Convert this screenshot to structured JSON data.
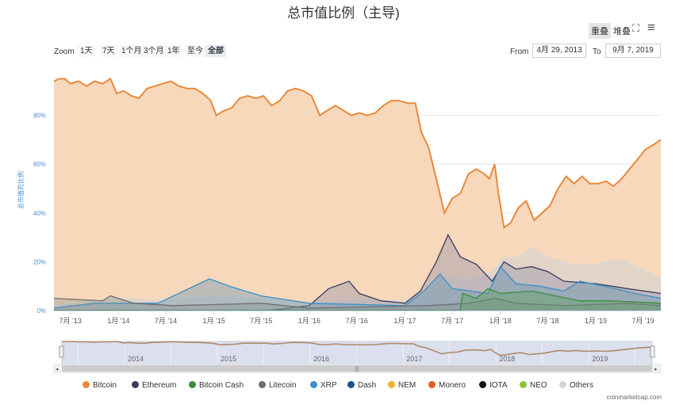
{
  "title": "总市值比例（主导)",
  "toolbar": {
    "overlay_label": "重叠",
    "stacked_label": "堆叠"
  },
  "zoom": {
    "label": "Zoom",
    "buttons": [
      "1天",
      "7天",
      "1个月",
      "3个月",
      "1年",
      "至今",
      "全部"
    ],
    "active": "全部"
  },
  "range": {
    "from_label": "From",
    "from_value": "4月 29, 2013",
    "to_label": "To",
    "to_value": "9月 7, 2019"
  },
  "credit": "coinmarketcap.com",
  "chart_data": {
    "type": "area",
    "title": "总市值比例（主导)",
    "ylabel": "总市值的比例",
    "ylim": [
      0,
      100
    ],
    "yticks": [
      "0%",
      "20%",
      "40%",
      "60%",
      "80%"
    ],
    "x_range": [
      "2013-04-29",
      "2019-09-07"
    ],
    "x_ticks": [
      {
        "date": "2013-07-01",
        "label": "7月 '13"
      },
      {
        "date": "2014-01-01",
        "label": "1月 '14"
      },
      {
        "date": "2014-07-01",
        "label": "7月 '14"
      },
      {
        "date": "2015-01-01",
        "label": "1月 '15"
      },
      {
        "date": "2015-07-01",
        "label": "7月 '15"
      },
      {
        "date": "2016-01-01",
        "label": "1月 '16"
      },
      {
        "date": "2016-07-01",
        "label": "7月 '16"
      },
      {
        "date": "2017-01-01",
        "label": "1月 '17"
      },
      {
        "date": "2017-07-01",
        "label": "7月 '17"
      },
      {
        "date": "2018-01-01",
        "label": "1月 '18"
      },
      {
        "date": "2018-07-01",
        "label": "7月 '18"
      },
      {
        "date": "2019-01-01",
        "label": "1月 '19"
      },
      {
        "date": "2019-07-01",
        "label": "7月 '19"
      }
    ],
    "navigator_labels": [
      {
        "date": "2014-01-01",
        "label": "2014"
      },
      {
        "date": "2015-01-01",
        "label": "2015"
      },
      {
        "date": "2016-01-01",
        "label": "2016"
      },
      {
        "date": "2017-01-01",
        "label": "2017"
      },
      {
        "date": "2018-01-01",
        "label": "2018"
      },
      {
        "date": "2019-01-01",
        "label": "2019"
      }
    ],
    "series": [
      {
        "name": "Bitcoin",
        "color": "#e8893b",
        "fill": "#f7d8bb",
        "points": [
          [
            "2013-04-29",
            94
          ],
          [
            "2013-05-20",
            95
          ],
          [
            "2013-06-10",
            95
          ],
          [
            "2013-07-01",
            93
          ],
          [
            "2013-08-01",
            94
          ],
          [
            "2013-09-01",
            92
          ],
          [
            "2013-10-01",
            94
          ],
          [
            "2013-11-01",
            93
          ],
          [
            "2013-12-01",
            95
          ],
          [
            "2013-12-25",
            89
          ],
          [
            "2014-01-20",
            90
          ],
          [
            "2014-02-20",
            88
          ],
          [
            "2014-03-20",
            87
          ],
          [
            "2014-04-20",
            91
          ],
          [
            "2014-05-20",
            92
          ],
          [
            "2014-06-20",
            93
          ],
          [
            "2014-07-20",
            94
          ],
          [
            "2014-08-20",
            92
          ],
          [
            "2014-09-20",
            91
          ],
          [
            "2014-10-20",
            91
          ],
          [
            "2014-11-20",
            89
          ],
          [
            "2014-12-20",
            86
          ],
          [
            "2015-01-10",
            80
          ],
          [
            "2015-02-10",
            82
          ],
          [
            "2015-03-10",
            83
          ],
          [
            "2015-04-10",
            87
          ],
          [
            "2015-05-10",
            88
          ],
          [
            "2015-06-10",
            87
          ],
          [
            "2015-07-10",
            88
          ],
          [
            "2015-08-10",
            84
          ],
          [
            "2015-09-10",
            86
          ],
          [
            "2015-10-10",
            90
          ],
          [
            "2015-11-10",
            91
          ],
          [
            "2015-12-10",
            90
          ],
          [
            "2016-01-10",
            88
          ],
          [
            "2016-02-10",
            80
          ],
          [
            "2016-03-10",
            82
          ],
          [
            "2016-04-10",
            84
          ],
          [
            "2016-05-10",
            82
          ],
          [
            "2016-06-10",
            80
          ],
          [
            "2016-07-10",
            81
          ],
          [
            "2016-08-10",
            80
          ],
          [
            "2016-09-10",
            81
          ],
          [
            "2016-10-10",
            84
          ],
          [
            "2016-11-10",
            86
          ],
          [
            "2016-12-10",
            86
          ],
          [
            "2017-01-10",
            85
          ],
          [
            "2017-02-10",
            85
          ],
          [
            "2017-03-05",
            73
          ],
          [
            "2017-04-01",
            67
          ],
          [
            "2017-05-01",
            54
          ],
          [
            "2017-06-01",
            40
          ],
          [
            "2017-07-01",
            46
          ],
          [
            "2017-08-01",
            48
          ],
          [
            "2017-09-01",
            56
          ],
          [
            "2017-10-01",
            58
          ],
          [
            "2017-11-01",
            56
          ],
          [
            "2017-11-20",
            54
          ],
          [
            "2017-12-10",
            60
          ],
          [
            "2017-12-25",
            48
          ],
          [
            "2018-01-15",
            34
          ],
          [
            "2018-02-10",
            36
          ],
          [
            "2018-03-10",
            42
          ],
          [
            "2018-04-10",
            45
          ],
          [
            "2018-05-10",
            37
          ],
          [
            "2018-06-10",
            40
          ],
          [
            "2018-07-10",
            43
          ],
          [
            "2018-08-10",
            50
          ],
          [
            "2018-09-10",
            55
          ],
          [
            "2018-10-10",
            52
          ],
          [
            "2018-11-10",
            55
          ],
          [
            "2018-12-10",
            52
          ],
          [
            "2019-01-10",
            52
          ],
          [
            "2019-02-10",
            53
          ],
          [
            "2019-03-10",
            51
          ],
          [
            "2019-04-10",
            54
          ],
          [
            "2019-05-10",
            58
          ],
          [
            "2019-06-10",
            62
          ],
          [
            "2019-07-10",
            66
          ],
          [
            "2019-08-10",
            68
          ],
          [
            "2019-09-07",
            70
          ]
        ]
      },
      {
        "name": "Others",
        "color": "#d9d9d9",
        "fill": "rgba(210,210,210,0.55)",
        "points": [
          [
            "2013-04-29",
            2
          ],
          [
            "2014-01-01",
            5
          ],
          [
            "2014-06-01",
            4
          ],
          [
            "2015-01-01",
            6
          ],
          [
            "2015-06-01",
            5
          ],
          [
            "2016-01-01",
            3
          ],
          [
            "2016-06-01",
            4
          ],
          [
            "2017-01-01",
            4
          ],
          [
            "2017-03-01",
            7
          ],
          [
            "2017-06-01",
            14
          ],
          [
            "2017-09-01",
            12
          ],
          [
            "2017-12-01",
            16
          ],
          [
            "2018-01-15",
            22
          ],
          [
            "2018-03-01",
            21
          ],
          [
            "2018-05-01",
            26
          ],
          [
            "2018-07-01",
            22
          ],
          [
            "2018-10-01",
            19
          ],
          [
            "2019-01-01",
            19
          ],
          [
            "2019-04-01",
            21
          ],
          [
            "2019-06-01",
            18
          ],
          [
            "2019-09-07",
            13
          ]
        ]
      },
      {
        "name": "Ethereum",
        "color": "#3b3a5c",
        "fill": "rgba(150,150,170,0.45)",
        "points": [
          [
            "2013-04-29",
            0
          ],
          [
            "2015-08-01",
            0
          ],
          [
            "2016-01-01",
            2
          ],
          [
            "2016-03-15",
            9
          ],
          [
            "2016-06-01",
            12
          ],
          [
            "2016-07-10",
            7
          ],
          [
            "2016-10-01",
            4
          ],
          [
            "2017-01-01",
            3
          ],
          [
            "2017-03-01",
            8
          ],
          [
            "2017-05-01",
            20
          ],
          [
            "2017-06-15",
            31
          ],
          [
            "2017-08-01",
            22
          ],
          [
            "2017-10-01",
            19
          ],
          [
            "2017-12-01",
            12
          ],
          [
            "2018-01-15",
            20
          ],
          [
            "2018-03-01",
            17
          ],
          [
            "2018-05-01",
            18
          ],
          [
            "2018-07-01",
            16
          ],
          [
            "2018-09-01",
            12
          ],
          [
            "2019-01-01",
            11
          ],
          [
            "2019-05-01",
            9
          ],
          [
            "2019-09-07",
            7
          ]
        ]
      },
      {
        "name": "XRP",
        "color": "#3a8fca",
        "fill": "rgba(100,150,180,0.40)",
        "points": [
          [
            "2013-04-29",
            1
          ],
          [
            "2013-10-01",
            3
          ],
          [
            "2014-06-01",
            3
          ],
          [
            "2014-12-15",
            13
          ],
          [
            "2015-03-01",
            10
          ],
          [
            "2015-07-01",
            6
          ],
          [
            "2016-01-01",
            3
          ],
          [
            "2017-01-01",
            2
          ],
          [
            "2017-03-15",
            8
          ],
          [
            "2017-05-15",
            15
          ],
          [
            "2017-07-01",
            9
          ],
          [
            "2017-11-15",
            7
          ],
          [
            "2018-01-01",
            18
          ],
          [
            "2018-03-01",
            11
          ],
          [
            "2018-06-01",
            10
          ],
          [
            "2018-09-01",
            8
          ],
          [
            "2018-11-01",
            12
          ],
          [
            "2019-02-01",
            10
          ],
          [
            "2019-06-01",
            7
          ],
          [
            "2019-09-07",
            5
          ]
        ]
      },
      {
        "name": "Litecoin",
        "color": "#6e6e6e",
        "fill": "rgba(130,140,140,0.35)",
        "points": [
          [
            "2013-04-29",
            5
          ],
          [
            "2013-11-01",
            4
          ],
          [
            "2013-12-01",
            6
          ],
          [
            "2014-03-01",
            3
          ],
          [
            "2014-08-01",
            2
          ],
          [
            "2015-07-01",
            3
          ],
          [
            "2016-01-01",
            1
          ],
          [
            "2017-04-01",
            2
          ],
          [
            "2017-09-01",
            3
          ],
          [
            "2017-12-15",
            5
          ],
          [
            "2018-03-01",
            3
          ],
          [
            "2018-09-01",
            2
          ],
          [
            "2019-05-01",
            3
          ],
          [
            "2019-09-07",
            2
          ]
        ]
      },
      {
        "name": "Bitcoin Cash",
        "color": "#3f8a3c",
        "fill": "rgba(90,160,90,0.40)",
        "points": [
          [
            "2013-04-29",
            0
          ],
          [
            "2017-07-31",
            0
          ],
          [
            "2017-08-10",
            7
          ],
          [
            "2017-10-01",
            5
          ],
          [
            "2017-11-15",
            9
          ],
          [
            "2018-01-01",
            7
          ],
          [
            "2018-05-01",
            8
          ],
          [
            "2018-11-01",
            4
          ],
          [
            "2019-03-01",
            4
          ],
          [
            "2019-09-07",
            3
          ]
        ]
      }
    ],
    "legend": [
      {
        "name": "Bitcoin",
        "color": "#e8893b"
      },
      {
        "name": "Ethereum",
        "color": "#3b3a5c"
      },
      {
        "name": "Bitcoin Cash",
        "color": "#3f8a3c"
      },
      {
        "name": "Litecoin",
        "color": "#6e6e6e"
      },
      {
        "name": "XRP",
        "color": "#3a8fca"
      },
      {
        "name": "Dash",
        "color": "#1f4e8c"
      },
      {
        "name": "NEM",
        "color": "#f0b22c"
      },
      {
        "name": "Monero",
        "color": "#e0601f"
      },
      {
        "name": "IOTA",
        "color": "#111111"
      },
      {
        "name": "NEO",
        "color": "#8ac23a"
      },
      {
        "name": "Others",
        "color": "#d4d4d4"
      }
    ],
    "legend_position": "bottom",
    "grid": true
  }
}
